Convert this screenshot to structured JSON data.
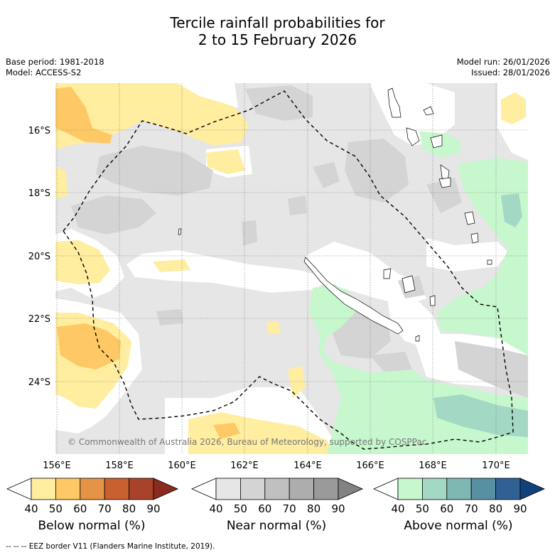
{
  "title_line1": "Tercile rainfall probabilities for",
  "title_line2": "2 to 15 February 2026",
  "base_period": "Base period: 1981-2018",
  "model": "Model: ACCESS-S2",
  "model_run": "Model run: 26/01/2026",
  "issued": "Issued: 28/01/2026",
  "copyright": "© Commonwealth of Australia 2026, Bureau of Meteorology, supported by COSPPac",
  "footer": "-- -- -- EEZ border V11 (Flanders Marine Institute, 2019).",
  "map": {
    "lon_labels": [
      "156°E",
      "158°E",
      "160°E",
      "162°E",
      "164°E",
      "166°E",
      "168°E",
      "170°E"
    ],
    "lat_labels": [
      "16°S",
      "18°S",
      "20°S",
      "22°S",
      "24°S"
    ],
    "lon_range": [
      155.95,
      171.05
    ],
    "lat_range": [
      -26.15,
      -14.65
    ]
  },
  "colorbars": [
    {
      "name": "below",
      "label": "Below normal (%)",
      "ticks": [
        "40",
        "50",
        "60",
        "70",
        "80",
        "90"
      ],
      "colors": [
        "#ffffff",
        "#ffeda0",
        "#fec965",
        "#e49444",
        "#c96030",
        "#a8432a",
        "#8b2a1e"
      ]
    },
    {
      "name": "near",
      "label": "Near normal (%)",
      "ticks": [
        "40",
        "50",
        "60",
        "70",
        "80",
        "90"
      ],
      "colors": [
        "#ffffff",
        "#e6e6e6",
        "#d4d4d4",
        "#c0c0c0",
        "#adadad",
        "#9a9a9a",
        "#828282"
      ]
    },
    {
      "name": "above",
      "label": "Above normal (%)",
      "ticks": [
        "40",
        "50",
        "60",
        "70",
        "80",
        "90"
      ],
      "colors": [
        "#ffffff",
        "#c6f7cd",
        "#a3d9c4",
        "#7fb7b3",
        "#578fa3",
        "#306195",
        "#12407a"
      ]
    }
  ]
}
